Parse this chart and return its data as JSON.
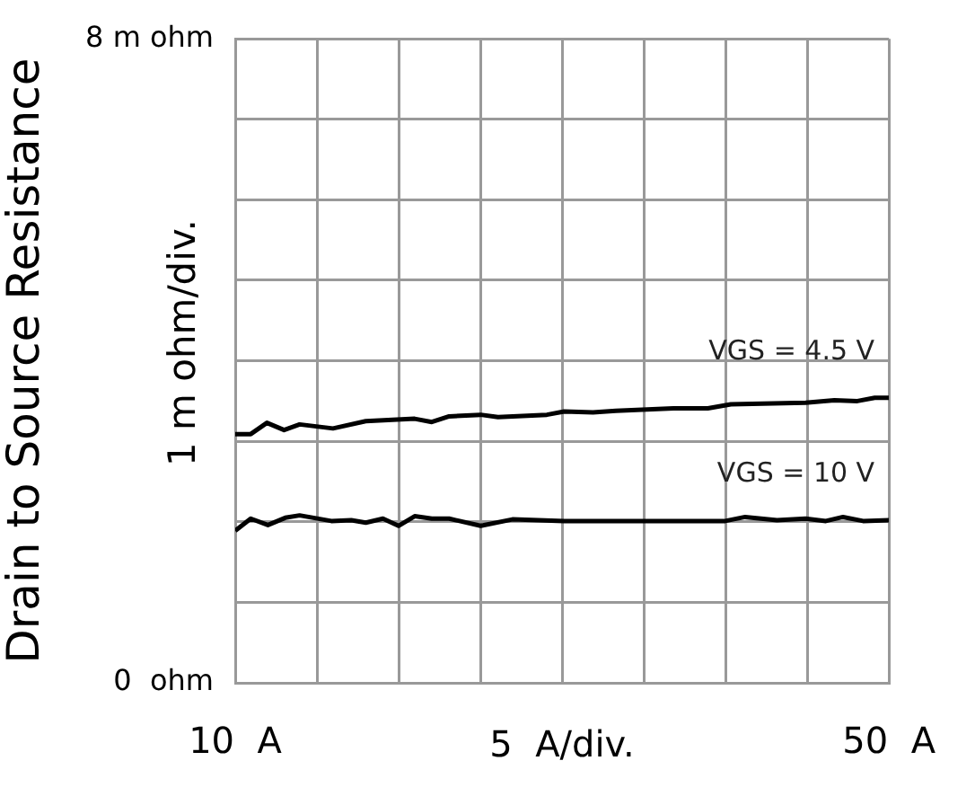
{
  "chart_data": {
    "type": "line",
    "ylabel": "Drain to Source Resistance",
    "xlabel": "5  A/div.",
    "annotations": [
      "1 m ohm/div."
    ],
    "xlim": [
      10,
      50
    ],
    "ylim": [
      0,
      8
    ],
    "xticks": [
      {
        "value": 10,
        "label": "10  A"
      },
      {
        "value": 15,
        "label": null
      },
      {
        "value": 20,
        "label": null
      },
      {
        "value": 25,
        "label": null
      },
      {
        "value": 30,
        "label": null
      },
      {
        "value": 35,
        "label": null
      },
      {
        "value": 40,
        "label": null
      },
      {
        "value": 45,
        "label": null
      },
      {
        "value": 50,
        "label": "50  A"
      }
    ],
    "yticks": [
      {
        "value": 0,
        "label": "0  ohm"
      },
      {
        "value": 1,
        "label": null
      },
      {
        "value": 2,
        "label": null
      },
      {
        "value": 3,
        "label": null
      },
      {
        "value": 4,
        "label": null
      },
      {
        "value": 5,
        "label": null
      },
      {
        "value": 6,
        "label": null
      },
      {
        "value": 7,
        "label": null
      },
      {
        "value": 8,
        "label": "8 m ohm"
      }
    ],
    "grid": true,
    "legend": false,
    "marker": "none",
    "line_style": "solid",
    "series": [
      {
        "name": "VGS = 4.5 V",
        "color": "#000000",
        "x": [
          10,
          10.95,
          11.94,
          12.99,
          13.94,
          15.98,
          17.99,
          20.98,
          22.03,
          23.09,
          25.02,
          26.08,
          29.07,
          30.13,
          31.89,
          33.29,
          36.81,
          38.92,
          40.33,
          44.9,
          46.66,
          48.07,
          49.13,
          50
        ],
        "values": [
          3.09,
          3.09,
          3.23,
          3.14,
          3.21,
          3.16,
          3.25,
          3.28,
          3.24,
          3.31,
          3.33,
          3.3,
          3.33,
          3.37,
          3.36,
          3.38,
          3.41,
          3.41,
          3.46,
          3.48,
          3.51,
          3.5,
          3.54,
          3.54
        ]
      },
      {
        "name": "VGS = 10 V",
        "color": "#000000",
        "x": [
          10,
          10.95,
          12,
          13.06,
          13.94,
          15.88,
          17.1,
          17.99,
          19.04,
          19.99,
          20.98,
          22.03,
          23.09,
          25.02,
          26.96,
          30.13,
          35.4,
          39.98,
          41.2,
          43.15,
          44.9,
          46.14,
          47.19,
          48.42,
          50
        ],
        "values": [
          1.89,
          2.04,
          1.96,
          2.05,
          2.08,
          2.01,
          2.02,
          1.99,
          2.04,
          1.95,
          2.07,
          2.04,
          2.04,
          1.95,
          2.03,
          2.01,
          2.01,
          2.01,
          2.06,
          2.02,
          2.04,
          2.01,
          2.06,
          2.01,
          2.02
        ]
      }
    ]
  }
}
